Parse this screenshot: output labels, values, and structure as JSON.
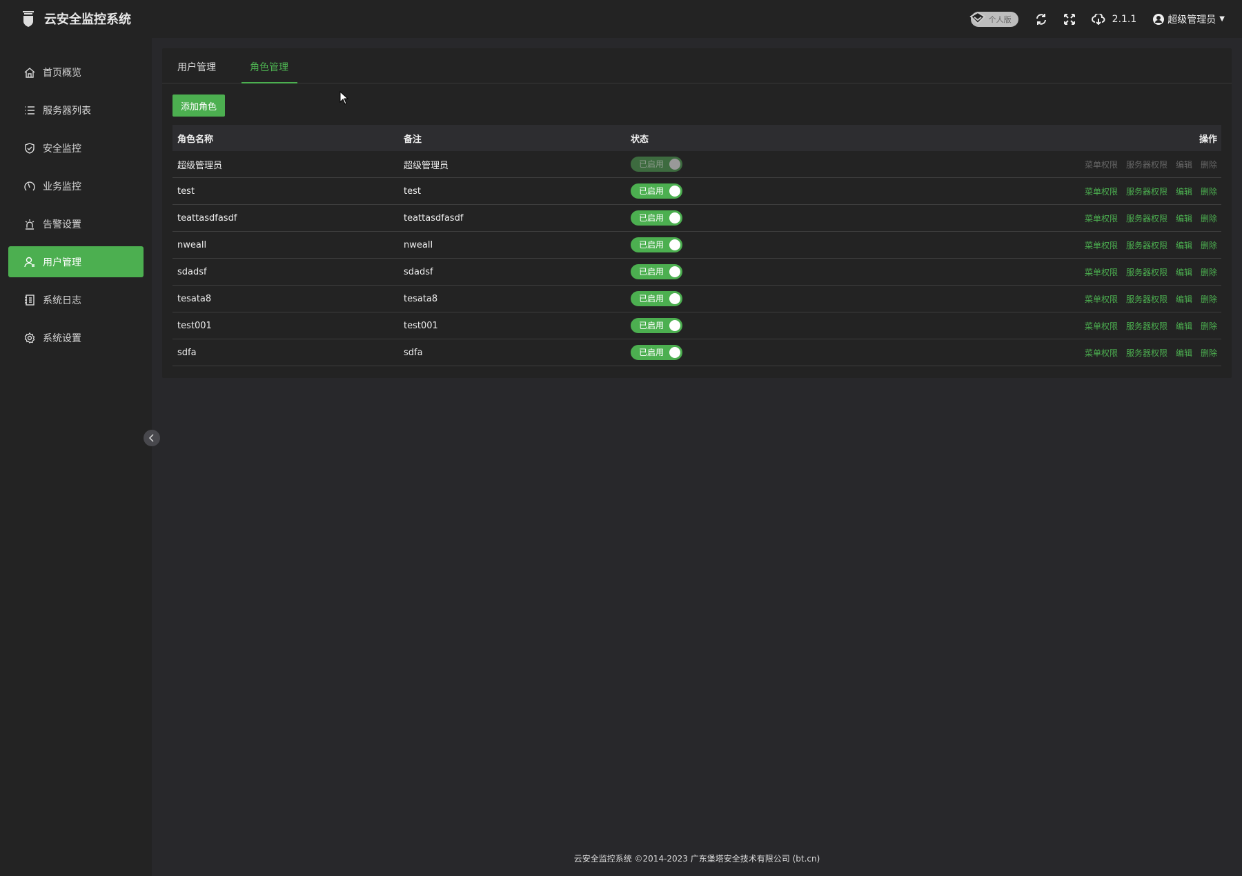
{
  "app": {
    "title": "云安全监控系统"
  },
  "header": {
    "edition": "个人版",
    "version": "2.1.1",
    "user": "超级管理员"
  },
  "sidebar": {
    "items": [
      {
        "label": "首页概览",
        "icon": "home-icon"
      },
      {
        "label": "服务器列表",
        "icon": "list-icon"
      },
      {
        "label": "安全监控",
        "icon": "shield-icon"
      },
      {
        "label": "业务监控",
        "icon": "gauge-icon"
      },
      {
        "label": "告警设置",
        "icon": "alarm-icon"
      },
      {
        "label": "用户管理",
        "icon": "user-icon",
        "active": true
      },
      {
        "label": "系统日志",
        "icon": "log-icon"
      },
      {
        "label": "系统设置",
        "icon": "gear-icon"
      }
    ]
  },
  "tabs": [
    {
      "label": "用户管理"
    },
    {
      "label": "角色管理",
      "active": true
    }
  ],
  "add_button": "添加角色",
  "table": {
    "columns": [
      "角色名称",
      "备注",
      "状态",
      "操作"
    ],
    "status_label": "已启用",
    "actions": [
      "菜单权限",
      "服务器权限",
      "编辑",
      "删除"
    ],
    "rows": [
      {
        "name": "超级管理员",
        "note": "超级管理员",
        "disabled": true
      },
      {
        "name": "test",
        "note": "test"
      },
      {
        "name": "teattasdfasdf",
        "note": "teattasdfasdf"
      },
      {
        "name": "nweall",
        "note": "nweall"
      },
      {
        "name": "sdadsf",
        "note": "sdadsf"
      },
      {
        "name": "tesata8",
        "note": "tesata8"
      },
      {
        "name": "test001",
        "note": "test001"
      },
      {
        "name": "sdfa",
        "note": "sdfa"
      }
    ]
  },
  "footer": "云安全监控系统 ©2014-2023 广东堡塔安全技术有限公司 (bt.cn)",
  "colors": {
    "accent": "#4caf50",
    "sidebar": "#232323",
    "main": "#28282b"
  }
}
